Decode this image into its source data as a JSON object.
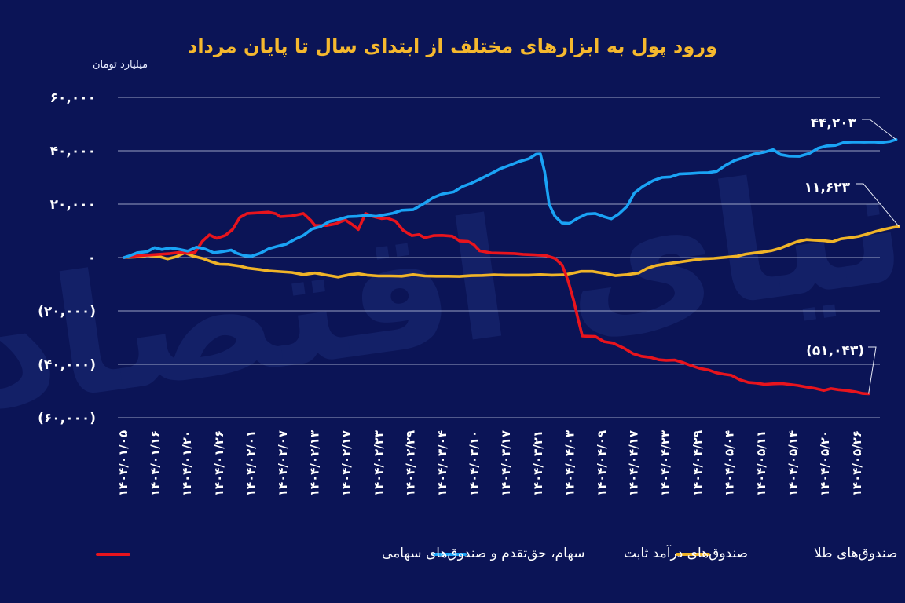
{
  "colors": {
    "background": "#0b1456",
    "title": "#f5b82e",
    "grid": "#c9cfe6"
  },
  "chart_data": {
    "type": "line",
    "title": "ورود پول به ابزارهای مختلف از ابتدای سال تا پایان مرداد",
    "ylabel": "میلیارد تومان",
    "ylim": [
      -60000,
      60000
    ],
    "y_ticks": [
      {
        "value": 60000,
        "label": "۶۰,۰۰۰"
      },
      {
        "value": 40000,
        "label": "۴۰,۰۰۰"
      },
      {
        "value": 20000,
        "label": "۲۰,۰۰۰"
      },
      {
        "value": 0,
        "label": "۰"
      },
      {
        "value": -20000,
        "label": "(۲۰,۰۰۰)"
      },
      {
        "value": -40000,
        "label": "(۴۰,۰۰۰)"
      },
      {
        "value": -60000,
        "label": "(۶۰,۰۰۰)"
      }
    ],
    "x_tick_labels": [
      "۱۴۰۴/۰۱/۰۵",
      "۱۴۰۴/۰۱/۱۶",
      "۱۴۰۴/۰۱/۲۰",
      "۱۴۰۴/۰۱/۲۶",
      "۱۴۰۴/۰۲/۰۱",
      "۱۴۰۴/۰۲/۰۷",
      "۱۴۰۴/۰۲/۱۳",
      "۱۴۰۴/۰۲/۱۷",
      "۱۴۰۴/۰۲/۲۳",
      "۱۴۰۴/۰۲/۲۹",
      "۱۴۰۴/۰۳/۰۴",
      "۱۴۰۴/۰۳/۱۰",
      "۱۴۰۴/۰۳/۱۷",
      "۱۴۰۴/۰۳/۲۱",
      "۱۴۰۴/۰۴/۰۳",
      "۱۴۰۴/۰۴/۰۹",
      "۱۴۰۴/۰۴/۱۷",
      "۱۴۰۴/۰۴/۲۳",
      "۱۴۰۴/۰۴/۲۹",
      "۱۴۰۴/۰۵/۰۴",
      "۱۴۰۴/۰۵/۱۱",
      "۱۴۰۴/۰۵/۱۴",
      "۱۴۰۴/۰۵/۲۰",
      "۱۴۰۴/۰۵/۲۶"
    ],
    "x_count": 24,
    "series": [
      {
        "name": "سهام، حق‌تقدم و صندوق‌های سهامی",
        "color": "#e8141d",
        "end_label": "(۵۱,۰۴۳)",
        "values": [
          [
            0,
            0
          ],
          [
            0.4,
            600
          ],
          [
            0.8,
            900
          ],
          [
            1.2,
            1200
          ],
          [
            1.6,
            1500
          ],
          [
            1.9,
            1900
          ],
          [
            2.2,
            1600
          ],
          [
            2.45,
            1900
          ],
          [
            2.7,
            6000
          ],
          [
            2.95,
            8500
          ],
          [
            3.2,
            7200
          ],
          [
            3.5,
            8300
          ],
          [
            3.75,
            10500
          ],
          [
            4.0,
            15000
          ],
          [
            4.25,
            16500
          ],
          [
            4.6,
            16700
          ],
          [
            5.0,
            17000
          ],
          [
            5.25,
            16400
          ],
          [
            5.4,
            15300
          ],
          [
            5.8,
            15600
          ],
          [
            6.2,
            16500
          ],
          [
            6.45,
            14000
          ],
          [
            6.6,
            12000
          ],
          [
            7.0,
            12000
          ],
          [
            7.3,
            12600
          ],
          [
            7.65,
            14100
          ],
          [
            7.9,
            12300
          ],
          [
            8.1,
            10500
          ],
          [
            8.35,
            16500
          ],
          [
            8.6,
            15400
          ],
          [
            8.9,
            14600
          ],
          [
            9.1,
            14800
          ],
          [
            9.4,
            13500
          ],
          [
            9.65,
            10200
          ],
          [
            9.95,
            8200
          ],
          [
            10.2,
            8600
          ],
          [
            10.4,
            7400
          ],
          [
            10.7,
            8200
          ],
          [
            11.0,
            8300
          ],
          [
            11.35,
            8000
          ],
          [
            11.6,
            6200
          ],
          [
            11.9,
            6000
          ],
          [
            12.1,
            4800
          ],
          [
            12.3,
            2500
          ],
          [
            12.7,
            1700
          ],
          [
            13.5,
            1500
          ],
          [
            13.8,
            1200
          ],
          [
            14.2,
            1000
          ],
          [
            14.6,
            700
          ],
          [
            14.9,
            -300
          ],
          [
            15.15,
            -2800
          ],
          [
            15.35,
            -8500
          ],
          [
            15.55,
            -16000
          ],
          [
            15.7,
            -23000
          ],
          [
            15.85,
            -29400
          ],
          [
            16.05,
            -29500
          ],
          [
            16.3,
            -29600
          ],
          [
            16.6,
            -31500
          ],
          [
            16.9,
            -32000
          ],
          [
            17.3,
            -34000
          ],
          [
            17.6,
            -36000
          ],
          [
            17.9,
            -37000
          ],
          [
            18.2,
            -37400
          ],
          [
            18.5,
            -38300
          ],
          [
            18.75,
            -38500
          ],
          [
            19.05,
            -38400
          ],
          [
            19.3,
            -39200
          ],
          [
            19.6,
            -40400
          ],
          [
            19.9,
            -41500
          ],
          [
            20.2,
            -42100
          ],
          [
            20.5,
            -43200
          ],
          [
            20.75,
            -43700
          ],
          [
            21.0,
            -44100
          ],
          [
            21.3,
            -45800
          ],
          [
            21.6,
            -46800
          ],
          [
            21.85,
            -47000
          ],
          [
            22.15,
            -47500
          ],
          [
            22.45,
            -47300
          ],
          [
            22.75,
            -47200
          ],
          [
            23.0,
            -47500
          ],
          [
            23.3,
            -47900
          ],
          [
            23.6,
            -48500
          ],
          [
            23.9,
            -49000
          ],
          [
            24.2,
            -49800
          ],
          [
            24.45,
            -49100
          ],
          [
            24.7,
            -49500
          ],
          [
            25.0,
            -49800
          ],
          [
            25.3,
            -50300
          ],
          [
            25.55,
            -50900
          ],
          [
            25.75,
            -51043
          ]
        ]
      },
      {
        "name": "صندوق‌های درآمد ثابت",
        "color": "#1aa3f5",
        "end_label": "۴۴,۲۰۳",
        "values": [
          [
            0,
            0
          ],
          [
            0.2,
            700
          ],
          [
            0.45,
            1800
          ],
          [
            0.8,
            2200
          ],
          [
            1.05,
            3700
          ],
          [
            1.3,
            3000
          ],
          [
            1.6,
            3600
          ],
          [
            1.9,
            3100
          ],
          [
            2.2,
            2400
          ],
          [
            2.5,
            3900
          ],
          [
            2.8,
            3200
          ],
          [
            3.1,
            1800
          ],
          [
            3.4,
            2200
          ],
          [
            3.7,
            2800
          ],
          [
            3.9,
            1600
          ],
          [
            4.15,
            700
          ],
          [
            4.4,
            500
          ],
          [
            4.7,
            1600
          ],
          [
            5.0,
            3300
          ],
          [
            5.3,
            4200
          ],
          [
            5.6,
            5000
          ],
          [
            5.9,
            6800
          ],
          [
            6.2,
            8300
          ],
          [
            6.5,
            10700
          ],
          [
            6.8,
            11600
          ],
          [
            7.1,
            13500
          ],
          [
            7.4,
            14200
          ],
          [
            7.75,
            15300
          ],
          [
            8.05,
            15400
          ],
          [
            8.4,
            15800
          ],
          [
            8.7,
            15400
          ],
          [
            9.0,
            16000
          ],
          [
            9.3,
            16600
          ],
          [
            9.6,
            17700
          ],
          [
            10.0,
            17900
          ],
          [
            10.35,
            20100
          ],
          [
            10.7,
            22500
          ],
          [
            11.0,
            23800
          ],
          [
            11.4,
            24600
          ],
          [
            11.7,
            26600
          ],
          [
            12.0,
            27800
          ],
          [
            12.35,
            29600
          ],
          [
            12.7,
            31500
          ],
          [
            13.0,
            33200
          ],
          [
            13.3,
            34400
          ],
          [
            13.65,
            35900
          ],
          [
            14.0,
            37000
          ],
          [
            14.25,
            38700
          ],
          [
            14.4,
            38800
          ],
          [
            14.55,
            32000
          ],
          [
            14.7,
            20000
          ],
          [
            14.9,
            15500
          ],
          [
            15.15,
            12900
          ],
          [
            15.4,
            12800
          ],
          [
            15.7,
            14800
          ],
          [
            16.0,
            16300
          ],
          [
            16.3,
            16500
          ],
          [
            16.6,
            15300
          ],
          [
            16.85,
            14500
          ],
          [
            17.1,
            16200
          ],
          [
            17.4,
            19200
          ],
          [
            17.65,
            24200
          ],
          [
            17.95,
            26700
          ],
          [
            18.3,
            28800
          ],
          [
            18.6,
            30000
          ],
          [
            18.9,
            30200
          ],
          [
            19.2,
            31300
          ],
          [
            19.6,
            31500
          ],
          [
            19.9,
            31700
          ],
          [
            20.2,
            31800
          ],
          [
            20.5,
            32300
          ],
          [
            20.8,
            34500
          ],
          [
            21.1,
            36300
          ],
          [
            21.5,
            37700
          ],
          [
            21.8,
            38800
          ],
          [
            22.15,
            39500
          ],
          [
            22.45,
            40400
          ],
          [
            22.7,
            38600
          ],
          [
            23.0,
            38000
          ],
          [
            23.35,
            37900
          ],
          [
            23.7,
            39000
          ],
          [
            24.0,
            40900
          ],
          [
            24.3,
            41800
          ],
          [
            24.6,
            42000
          ],
          [
            24.9,
            43100
          ],
          [
            25.25,
            43300
          ],
          [
            25.6,
            43200
          ],
          [
            25.9,
            43300
          ],
          [
            26.2,
            43100
          ],
          [
            26.5,
            43500
          ],
          [
            26.7,
            44203
          ]
        ]
      },
      {
        "name": "صندوق‌های طلا",
        "color": "#f0b428",
        "end_label": "۱۱,۶۲۳",
        "values": [
          [
            0,
            0
          ],
          [
            0.4,
            200
          ],
          [
            0.8,
            800
          ],
          [
            1.2,
            400
          ],
          [
            1.5,
            -500
          ],
          [
            1.8,
            300
          ],
          [
            2.1,
            1800
          ],
          [
            2.4,
            500
          ],
          [
            2.7,
            -300
          ],
          [
            3.0,
            -1500
          ],
          [
            3.3,
            -2500
          ],
          [
            3.6,
            -2600
          ],
          [
            4.0,
            -3200
          ],
          [
            4.3,
            -4000
          ],
          [
            4.7,
            -4500
          ],
          [
            5.0,
            -5000
          ],
          [
            5.4,
            -5300
          ],
          [
            5.8,
            -5600
          ],
          [
            6.2,
            -6400
          ],
          [
            6.6,
            -5800
          ],
          [
            7.0,
            -6600
          ],
          [
            7.4,
            -7300
          ],
          [
            7.8,
            -6400
          ],
          [
            8.1,
            -6100
          ],
          [
            8.4,
            -6600
          ],
          [
            8.8,
            -6900
          ],
          [
            9.2,
            -6900
          ],
          [
            9.6,
            -7000
          ],
          [
            10.0,
            -6400
          ],
          [
            10.4,
            -6900
          ],
          [
            10.8,
            -7000
          ],
          [
            11.2,
            -7000
          ],
          [
            11.6,
            -7100
          ],
          [
            12.0,
            -6800
          ],
          [
            12.4,
            -6700
          ],
          [
            12.8,
            -6500
          ],
          [
            13.2,
            -6600
          ],
          [
            13.6,
            -6600
          ],
          [
            14.0,
            -6600
          ],
          [
            14.4,
            -6400
          ],
          [
            14.8,
            -6600
          ],
          [
            15.2,
            -6500
          ],
          [
            15.5,
            -5900
          ],
          [
            15.8,
            -5200
          ],
          [
            16.2,
            -5200
          ],
          [
            16.6,
            -5900
          ],
          [
            17.0,
            -6800
          ],
          [
            17.4,
            -6400
          ],
          [
            17.8,
            -5800
          ],
          [
            18.1,
            -4000
          ],
          [
            18.4,
            -3000
          ],
          [
            18.8,
            -2300
          ],
          [
            19.2,
            -1700
          ],
          [
            19.6,
            -1100
          ],
          [
            20.0,
            -500
          ],
          [
            20.4,
            -300
          ],
          [
            20.8,
            100
          ],
          [
            21.2,
            500
          ],
          [
            21.5,
            1300
          ],
          [
            21.8,
            1700
          ],
          [
            22.1,
            2100
          ],
          [
            22.4,
            2600
          ],
          [
            22.7,
            3500
          ],
          [
            23.0,
            4800
          ],
          [
            23.3,
            6000
          ],
          [
            23.6,
            6700
          ],
          [
            23.9,
            6500
          ],
          [
            24.2,
            6300
          ],
          [
            24.5,
            5900
          ],
          [
            24.8,
            7000
          ],
          [
            25.1,
            7400
          ],
          [
            25.4,
            7900
          ],
          [
            25.7,
            8800
          ],
          [
            26.0,
            9800
          ],
          [
            26.3,
            10600
          ],
          [
            26.6,
            11300
          ],
          [
            26.8,
            11623
          ]
        ]
      }
    ]
  },
  "watermark_text": "دنیای اقتصاد"
}
